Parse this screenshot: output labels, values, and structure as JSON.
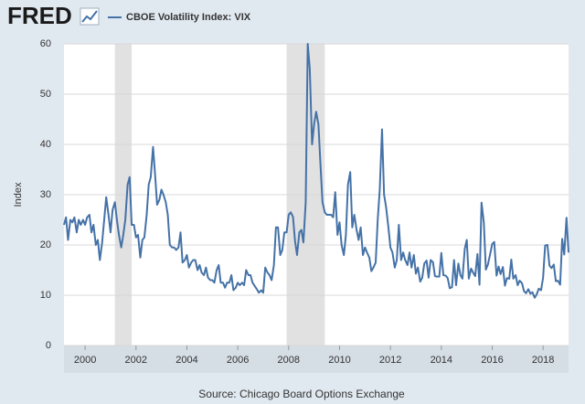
{
  "chart_data": {
    "type": "line",
    "logo": "FRED",
    "ylabel": "Index",
    "source": "Source: Chicago Board Options Exchange",
    "xlim": [
      1999.17,
      2019.0
    ],
    "xticks": [
      2000,
      2002,
      2004,
      2006,
      2008,
      2010,
      2012,
      2014,
      2016,
      2018
    ],
    "ylim": [
      0,
      60
    ],
    "yticks": [
      0,
      10,
      20,
      30,
      40,
      50,
      60
    ],
    "grid": true,
    "recessions": [
      [
        2001.17,
        2001.83
      ],
      [
        2007.92,
        2009.42
      ]
    ],
    "x": [
      1999.17,
      1999.25,
      1999.33,
      1999.42,
      1999.5,
      1999.58,
      1999.67,
      1999.75,
      1999.83,
      1999.92,
      2000.0,
      2000.08,
      2000.17,
      2000.25,
      2000.33,
      2000.42,
      2000.5,
      2000.58,
      2000.67,
      2000.75,
      2000.83,
      2000.92,
      2001.0,
      2001.08,
      2001.17,
      2001.25,
      2001.33,
      2001.42,
      2001.5,
      2001.58,
      2001.67,
      2001.75,
      2001.83,
      2001.92,
      2002.0,
      2002.08,
      2002.17,
      2002.25,
      2002.33,
      2002.42,
      2002.5,
      2002.58,
      2002.67,
      2002.75,
      2002.83,
      2002.92,
      2003.0,
      2003.08,
      2003.17,
      2003.25,
      2003.33,
      2003.42,
      2003.5,
      2003.58,
      2003.67,
      2003.75,
      2003.83,
      2003.92,
      2004.0,
      2004.08,
      2004.17,
      2004.25,
      2004.33,
      2004.42,
      2004.5,
      2004.58,
      2004.67,
      2004.75,
      2004.83,
      2004.92,
      2005.0,
      2005.08,
      2005.17,
      2005.25,
      2005.33,
      2005.42,
      2005.5,
      2005.58,
      2005.67,
      2005.75,
      2005.83,
      2005.92,
      2006.0,
      2006.08,
      2006.17,
      2006.25,
      2006.33,
      2006.42,
      2006.5,
      2006.58,
      2006.67,
      2006.75,
      2006.83,
      2006.92,
      2007.0,
      2007.08,
      2007.17,
      2007.25,
      2007.33,
      2007.42,
      2007.5,
      2007.58,
      2007.67,
      2007.75,
      2007.83,
      2007.92,
      2008.0,
      2008.08,
      2008.17,
      2008.25,
      2008.33,
      2008.42,
      2008.5,
      2008.58,
      2008.67,
      2008.75,
      2008.83,
      2008.92,
      2009.0,
      2009.08,
      2009.17,
      2009.25,
      2009.33,
      2009.42,
      2009.5,
      2009.58,
      2009.67,
      2009.75,
      2009.83,
      2009.92,
      2010.0,
      2010.08,
      2010.17,
      2010.25,
      2010.33,
      2010.42,
      2010.5,
      2010.58,
      2010.67,
      2010.75,
      2010.83,
      2010.92,
      2011.0,
      2011.08,
      2011.17,
      2011.25,
      2011.33,
      2011.42,
      2011.5,
      2011.58,
      2011.67,
      2011.75,
      2011.83,
      2011.92,
      2012.0,
      2012.08,
      2012.17,
      2012.25,
      2012.33,
      2012.42,
      2012.5,
      2012.58,
      2012.67,
      2012.75,
      2012.83,
      2012.92,
      2013.0,
      2013.08,
      2013.17,
      2013.25,
      2013.33,
      2013.42,
      2013.5,
      2013.58,
      2013.67,
      2013.75,
      2013.83,
      2013.92,
      2014.0,
      2014.08,
      2014.17,
      2014.25,
      2014.33,
      2014.42,
      2014.5,
      2014.58,
      2014.67,
      2014.75,
      2014.83,
      2014.92,
      2015.0,
      2015.08,
      2015.17,
      2015.25,
      2015.33,
      2015.42,
      2015.5,
      2015.58,
      2015.67,
      2015.75,
      2015.83,
      2015.92,
      2016.0,
      2016.08,
      2016.17,
      2016.25,
      2016.33,
      2016.42,
      2016.5,
      2016.58,
      2016.67,
      2016.75,
      2016.83,
      2016.92,
      2017.0,
      2017.08,
      2017.17,
      2017.25,
      2017.33,
      2017.42,
      2017.5,
      2017.58,
      2017.67,
      2017.75,
      2017.83,
      2017.92,
      2018.0,
      2018.08,
      2018.17,
      2018.25,
      2018.33,
      2018.42,
      2018.5,
      2018.58,
      2018.67,
      2018.75,
      2018.83,
      2018.92,
      2019.0
    ],
    "series": [
      {
        "name": "CBOE Volatility Index: VIX",
        "color": "#4572a7",
        "values": [
          24,
          25.5,
          21,
          25,
          24.5,
          25.5,
          22.5,
          25,
          24,
          25,
          24,
          25.5,
          26,
          22.5,
          24,
          20,
          21,
          17,
          20.5,
          25,
          29.5,
          26,
          22.5,
          27,
          28.5,
          25,
          22,
          19.5,
          22,
          25,
          32,
          33.5,
          24,
          24,
          21.5,
          22,
          17.5,
          21,
          21.5,
          26,
          32,
          33.5,
          39.5,
          34,
          28,
          29,
          31,
          30,
          28.5,
          26,
          20,
          19.5,
          19.5,
          19,
          19.5,
          22.5,
          16.5,
          17,
          18,
          15.5,
          16.5,
          17,
          17,
          15,
          16,
          14.5,
          14,
          15.5,
          13.5,
          13,
          13,
          12.5,
          15,
          16,
          12.5,
          12.5,
          11.5,
          12.5,
          12.5,
          14,
          11,
          11.5,
          12.5,
          12,
          12.5,
          12,
          15,
          14,
          14,
          12.5,
          11.8,
          11.2,
          10.5,
          11,
          10.5,
          15.5,
          14.5,
          14,
          13,
          16,
          23.5,
          23.5,
          18,
          19,
          22.5,
          22.5,
          26,
          26.5,
          25.6,
          20.8,
          18,
          22.5,
          23,
          20.5,
          28.5,
          60,
          55,
          40,
          44,
          46.5,
          44,
          36,
          28.5,
          26.5,
          26,
          26,
          26,
          25.5,
          30.5,
          22,
          24.5,
          20,
          18,
          22,
          32,
          34.5,
          23.5,
          26,
          23,
          21,
          23.5,
          18,
          19.5,
          18.5,
          17.5,
          14.8,
          15.5,
          16.5,
          25,
          31,
          43,
          30,
          27.5,
          23.5,
          19.5,
          18.5,
          15.5,
          17,
          24,
          17,
          18.5,
          17,
          16,
          18.5,
          15.5,
          18,
          14.3,
          15.5,
          12.7,
          13.5,
          16.3,
          16.9,
          13.5,
          17,
          16.6,
          13.8,
          13.7,
          13.7,
          18.4,
          14,
          13.9,
          13.4,
          11.4,
          11.6,
          17,
          12,
          16.3,
          14,
          13.3,
          19.2,
          21,
          13.3,
          15.3,
          14.5,
          13.8,
          18.2,
          12.1,
          28.4,
          24.5,
          15.1,
          16.1,
          18.2,
          20.2,
          20.6,
          13.9,
          15.7,
          14.2,
          15.6,
          11.9,
          13.4,
          13.3,
          17.1,
          13.3,
          14,
          12,
          12.9,
          12.4,
          10.8,
          10.4,
          11.2,
          10.3,
          10.6,
          9.5,
          10.2,
          11.3,
          11,
          13.5,
          19.9,
          20,
          15.9,
          15.4,
          16.1,
          12.8,
          12.9,
          12.1,
          21.2,
          18.1,
          25.4,
          18.5
        ]
      }
    ]
  }
}
